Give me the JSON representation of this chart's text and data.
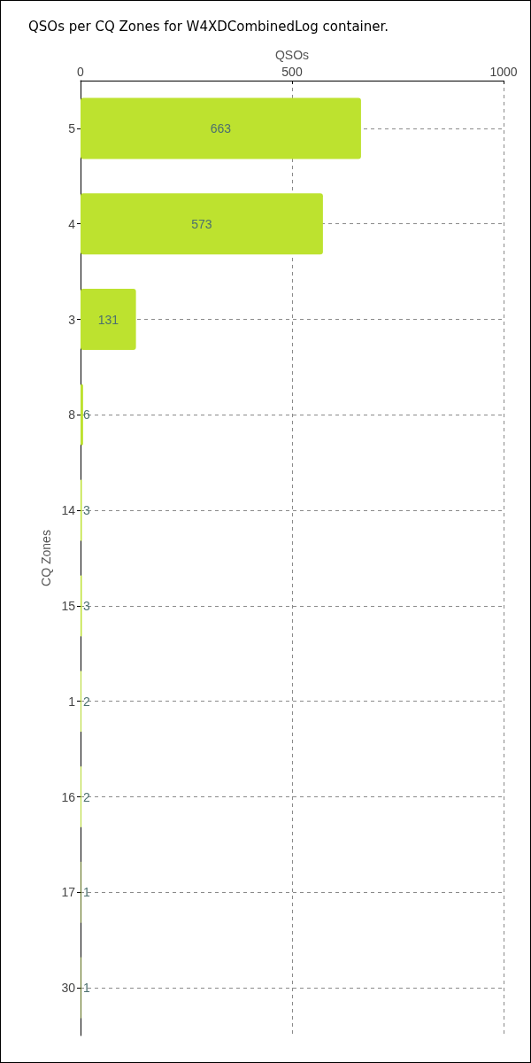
{
  "chart_data": {
    "type": "bar",
    "orientation": "horizontal",
    "title": "QSOs per CQ Zones for W4XDCombinedLog container.",
    "xlabel": "QSOs",
    "ylabel": "CQ Zones",
    "categories": [
      "5",
      "4",
      "3",
      "8",
      "14",
      "15",
      "1",
      "16",
      "17",
      "30"
    ],
    "values": [
      663,
      573,
      131,
      6,
      3,
      3,
      2,
      2,
      1,
      1
    ],
    "color": "#bde22f",
    "xlim": [
      0,
      1000
    ],
    "xticks": [
      0,
      500,
      1000
    ],
    "grid": true,
    "data_labels": true
  }
}
